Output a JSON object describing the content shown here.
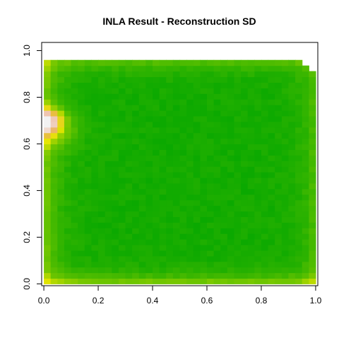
{
  "chart_data": {
    "type": "heatmap",
    "title": "INLA Result  - Reconstruction SD",
    "xlabel": "",
    "ylabel": "",
    "xlim": [
      -0.008,
      1.008
    ],
    "ylim": [
      -0.008,
      1.035
    ],
    "x_ticks": [
      0,
      0.2,
      0.4,
      0.6,
      0.8,
      1.0
    ],
    "x_tick_labels": [
      "0.0",
      "0.2",
      "0.4",
      "0.6",
      "0.8",
      "1.0"
    ],
    "y_ticks": [
      0,
      0.2,
      0.4,
      0.6,
      0.8,
      1.0
    ],
    "y_tick_labels": [
      "0.0",
      "0.2",
      "0.4",
      "0.6",
      "0.8",
      "1.0"
    ],
    "grid": false,
    "legend": "none",
    "colormap": "terrain",
    "color_low": "#00a600",
    "color_high": "#f2f2f2",
    "grid_resolution": [
      40,
      40
    ],
    "data_extent": {
      "x": [
        0,
        1
      ],
      "y": [
        0,
        0.96
      ]
    },
    "sd_field_notes": "relative SD in [0,1]; minimum in the interior; elevated along all edges; maximum at x=0, y≈0.70"
  }
}
